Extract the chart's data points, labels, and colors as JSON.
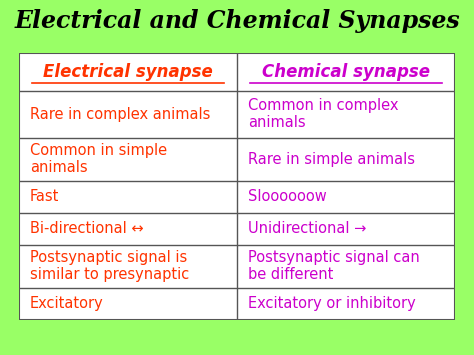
{
  "title": "Electrical and Chemical Synapses",
  "title_color": "#000000",
  "title_bg": "#66ff00",
  "title_fontsize": 17,
  "col1_header": "Electrical synapse",
  "col2_header": "Chemical synapse",
  "col1_color": "#ff3300",
  "col2_color": "#cc00cc",
  "header_fontsize": 12,
  "cell_fontsize": 10.5,
  "rows": [
    [
      "Rare in complex animals",
      "Common in complex\nanimals"
    ],
    [
      "Common in simple\nanimals",
      "Rare in simple animals"
    ],
    [
      "Fast",
      "Sloooooow"
    ],
    [
      "Bi-directional ↔",
      "Unidirectional →"
    ],
    [
      "Postsynaptic signal is\nsimilar to presynaptic",
      "Postsynaptic signal can\nbe different"
    ],
    [
      "Excitatory",
      "Excitatory or inhibitory"
    ]
  ],
  "bg_color": "#99ff66",
  "table_bg": "#ffffff",
  "border_color": "#555555",
  "col_split": 0.5,
  "fig_width": 4.74,
  "fig_height": 3.55
}
